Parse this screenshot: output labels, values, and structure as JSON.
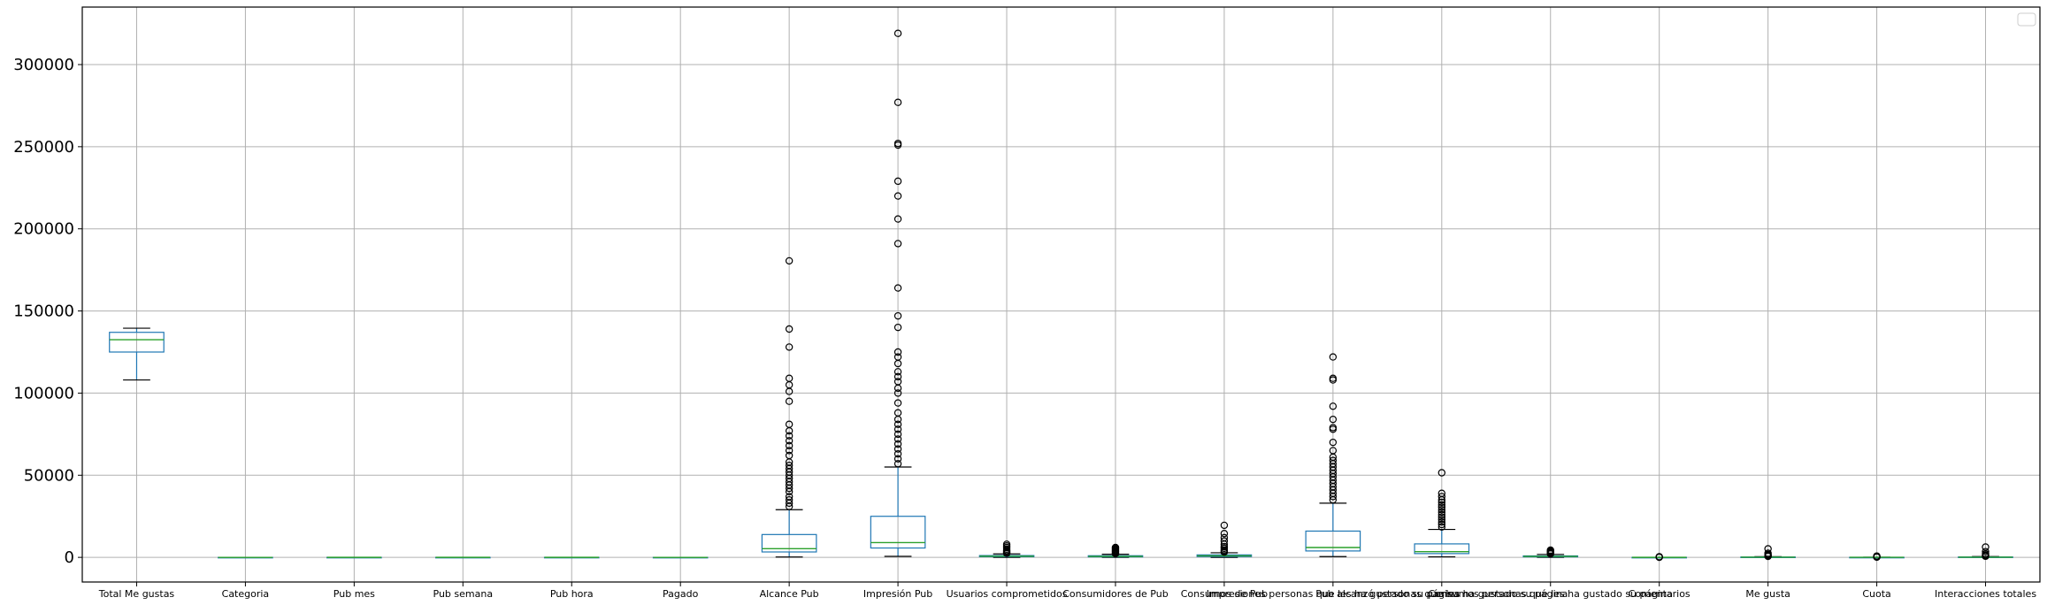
{
  "chart_data": {
    "type": "box",
    "title": "",
    "xlabel": "",
    "ylabel": "",
    "ylim": [
      -15000,
      335000
    ],
    "yticks": [
      0,
      50000,
      100000,
      150000,
      200000,
      250000,
      300000
    ],
    "grid": true,
    "legend": {
      "placement": "top-right",
      "entries": []
    },
    "colors": {
      "box": "#1f77b4",
      "median": "#2ca02c",
      "cap": "#000000",
      "grid": "#b0b0b0"
    },
    "series": [
      {
        "name": "Total Me gustas",
        "whisker_low": 108000,
        "q1": 125000,
        "median": 132500,
        "q3": 137000,
        "whisker_high": 139500,
        "outliers": []
      },
      {
        "name": "Categoria",
        "whisker_low": 1,
        "q1": 1,
        "median": 2,
        "q3": 3,
        "whisker_high": 3,
        "outliers": []
      },
      {
        "name": "Pub mes",
        "whisker_low": 1,
        "q1": 4,
        "median": 7,
        "q3": 10,
        "whisker_high": 12,
        "outliers": []
      },
      {
        "name": "Pub semana",
        "whisker_low": 1,
        "q1": 2,
        "median": 4,
        "q3": 6,
        "whisker_high": 7,
        "outliers": []
      },
      {
        "name": "Pub hora",
        "whisker_low": 1,
        "q1": 3,
        "median": 9,
        "q3": 13,
        "whisker_high": 23,
        "outliers": []
      },
      {
        "name": "Pagado",
        "whisker_low": 0,
        "q1": 0,
        "median": 0,
        "q3": 1,
        "whisker_high": 1,
        "outliers": []
      },
      {
        "name": "Alcance Pub",
        "whisker_low": 200,
        "q1": 3300,
        "median": 5300,
        "q3": 13900,
        "whisker_high": 29000,
        "outliers": [
          31000,
          33000,
          35000,
          37000,
          40000,
          42000,
          44000,
          46000,
          48000,
          50000,
          52000,
          54000,
          56000,
          58000,
          62000,
          65000,
          68000,
          71000,
          74000,
          77000,
          81000,
          95000,
          101000,
          105000,
          109000,
          128000,
          139000,
          180500
        ]
      },
      {
        "name": "Impresión Pub",
        "whisker_low": 600,
        "q1": 5700,
        "median": 9000,
        "q3": 25000,
        "whisker_high": 55000,
        "outliers": [
          57000,
          60000,
          63000,
          66000,
          69000,
          72000,
          75000,
          78000,
          81000,
          84000,
          88000,
          94000,
          100000,
          103000,
          107000,
          110000,
          113000,
          118000,
          122000,
          125000,
          140000,
          147000,
          164000,
          191000,
          206000,
          220000,
          229000,
          251000,
          252000,
          277000,
          319000
        ]
      },
      {
        "name": "Usuarios comprometidos",
        "whisker_low": 0,
        "q1": 400,
        "median": 700,
        "q3": 1100,
        "whisker_high": 2100,
        "outliers": [
          2500,
          3000,
          3600,
          4200,
          5000,
          6000,
          7000,
          8000
        ]
      },
      {
        "name": "Consumidores de Pub",
        "whisker_low": 0,
        "q1": 300,
        "median": 600,
        "q3": 1000,
        "whisker_high": 1900,
        "outliers": [
          2200,
          2600,
          3000,
          3500,
          4000,
          4500,
          5000,
          5500,
          6000
        ]
      },
      {
        "name": "Consumos de Pub",
        "whisker_low": 0,
        "q1": 500,
        "median": 900,
        "q3": 1500,
        "whisker_high": 2800,
        "outliers": [
          3200,
          3800,
          4500,
          5500,
          6500,
          8000,
          10000,
          12000,
          14500,
          19500
        ]
      },
      {
        "name": "Impresiones personas que les ha gustado su página",
        "whisker_low": 500,
        "q1": 3900,
        "median": 6000,
        "q3": 16000,
        "whisker_high": 33000,
        "outliers": [
          35000,
          37000,
          39000,
          41000,
          43000,
          45000,
          47000,
          49000,
          51000,
          53000,
          55000,
          57000,
          59000,
          61000,
          65000,
          70000,
          78000,
          79000,
          84000,
          92000,
          108000,
          109000,
          122000
        ]
      },
      {
        "name": "Pub alcanzó personas que les ha gustado su página",
        "whisker_low": 300,
        "q1": 2300,
        "median": 3500,
        "q3": 8200,
        "whisker_high": 17000,
        "outliers": [
          18500,
          20000,
          21500,
          23000,
          24500,
          26000,
          27500,
          29000,
          30500,
          32000,
          33500,
          35000,
          37000,
          39000,
          51500
        ]
      },
      {
        "name": "Consumos personas que les ha gustado su página",
        "whisker_low": 0,
        "q1": 300,
        "median": 600,
        "q3": 900,
        "whisker_high": 1800,
        "outliers": [
          2100,
          2500,
          2900,
          3400,
          3900,
          4400
        ]
      },
      {
        "name": "Comentarios",
        "whisker_low": 0,
        "q1": 1,
        "median": 3,
        "q3": 7,
        "whisker_high": 16,
        "outliers": [
          50,
          120,
          250,
          400
        ]
      },
      {
        "name": "Me gusta",
        "whisker_low": 0,
        "q1": 60,
        "median": 110,
        "q3": 200,
        "whisker_high": 410,
        "outliers": [
          600,
          900,
          1300,
          1800,
          2500,
          5200
        ]
      },
      {
        "name": "Cuota",
        "whisker_low": 0,
        "q1": 10,
        "median": 19,
        "q3": 33,
        "whisker_high": 68,
        "outliers": [
          150,
          300,
          500,
          800
        ]
      },
      {
        "name": "Interacciones totales",
        "whisker_low": 0,
        "q1": 70,
        "median": 130,
        "q3": 230,
        "whisker_high": 470,
        "outliers": [
          700,
          1000,
          1500,
          2200,
          3500,
          6300
        ]
      }
    ]
  }
}
